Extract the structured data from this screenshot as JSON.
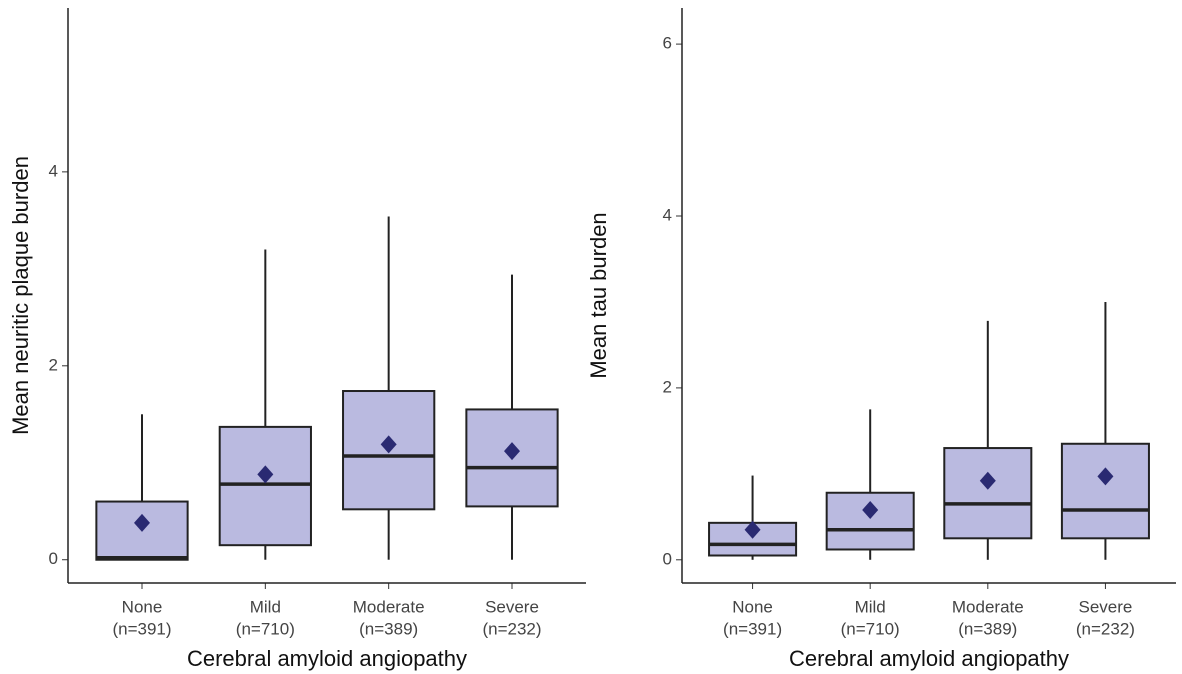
{
  "chart_data": [
    {
      "type": "box",
      "y_label": "Mean neuritic plaque burden",
      "x_label": "Cerebral amyloid angiopathy",
      "categories": [
        "None",
        "Mild",
        "Moderate",
        "Severe"
      ],
      "count_labels": [
        "(n=391)",
        "(n=710)",
        "(n=389)",
        "(n=232)"
      ],
      "whisker_low": [
        0,
        0,
        0,
        0
      ],
      "q1": [
        0,
        0.15,
        0.52,
        0.55
      ],
      "median": [
        0.02,
        0.78,
        1.07,
        0.95
      ],
      "q3": [
        0.6,
        1.37,
        1.74,
        1.55
      ],
      "whisker_high": [
        1.5,
        3.2,
        3.54,
        2.94
      ],
      "mean": [
        0.38,
        0.88,
        1.19,
        1.12
      ],
      "ylim": [
        -0.24,
        5.69
      ],
      "yticks": [
        0,
        2,
        4
      ],
      "fill": "#a3a3d6",
      "mean_color": "#2a2a72"
    },
    {
      "type": "box",
      "y_label": "Mean tau burden",
      "x_label": "Cerebral amyloid angiopathy",
      "categories": [
        "None",
        "Mild",
        "Moderate",
        "Severe"
      ],
      "count_labels": [
        "(n=391)",
        "(n=710)",
        "(n=389)",
        "(n=232)"
      ],
      "whisker_low": [
        0,
        0,
        0,
        0
      ],
      "q1": [
        0.05,
        0.12,
        0.25,
        0.25
      ],
      "median": [
        0.18,
        0.35,
        0.65,
        0.58
      ],
      "q3": [
        0.43,
        0.78,
        1.3,
        1.35
      ],
      "whisker_high": [
        0.98,
        1.75,
        2.78,
        3.0
      ],
      "mean": [
        0.35,
        0.58,
        0.92,
        0.97
      ],
      "ylim": [
        -0.27,
        6.42
      ],
      "yticks": [
        0,
        2,
        4,
        6
      ],
      "fill": "#a3a3d6",
      "mean_color": "#2a2a72"
    }
  ]
}
